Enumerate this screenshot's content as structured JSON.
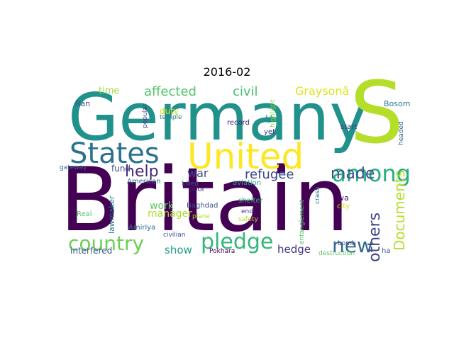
{
  "title": "2016-02",
  "words": [
    {
      "text": "Britain",
      "color": "#440154"
    },
    {
      "text": "Germany",
      "color": "#21918c"
    },
    {
      "text": "S",
      "color": "#b5de2b"
    },
    {
      "text": "United",
      "color": "#fde725"
    },
    {
      "text": "States",
      "color": "#2c728e"
    },
    {
      "text": "among",
      "color": "#28ae80"
    },
    {
      "text": "pledge",
      "color": "#35b779"
    },
    {
      "text": "country",
      "color": "#6ece58"
    },
    {
      "text": "new",
      "color": "#31688e"
    },
    {
      "text": "help",
      "color": "#482878"
    },
    {
      "text": "made",
      "color": "#3b528b"
    },
    {
      "text": "refugee",
      "color": "#3e4989"
    },
    {
      "text": "others",
      "color": "#404688"
    },
    {
      "text": "Documents",
      "color": "#b5de2b"
    },
    {
      "text": "affected",
      "color": "#52c569"
    },
    {
      "text": "civil",
      "color": "#4ac16d"
    },
    {
      "text": "Graysonâ",
      "color": "#dde318"
    },
    {
      "text": "war",
      "color": "#3f4788"
    },
    {
      "text": "work",
      "color": "#5ec962"
    },
    {
      "text": "manager",
      "color": "#addc30"
    },
    {
      "text": "show",
      "color": "#1f9e89"
    },
    {
      "text": "hedge",
      "color": "#453882"
    },
    {
      "text": "fund",
      "color": "#3e4a89"
    },
    {
      "text": "U",
      "color": "#24868e"
    },
    {
      "text": "time",
      "color": "#a0da39"
    },
    {
      "text": "duty",
      "color": "#cde11d"
    },
    {
      "text": "interfered",
      "color": "#3b528b"
    },
    {
      "text": "lawmaker",
      "color": "#2a788e"
    },
    {
      "text": "Ran",
      "color": "#3b528b"
    },
    {
      "text": "popular",
      "color": "#414487"
    },
    {
      "text": "temple",
      "color": "#287c8e"
    },
    {
      "text": "record",
      "color": "#482475"
    },
    {
      "text": "highlight",
      "color": "#7ad151"
    },
    {
      "text": "yet",
      "color": "#46327e"
    },
    {
      "text": "Bosom",
      "color": "#2a788e"
    },
    {
      "text": "start",
      "color": "#443983"
    },
    {
      "text": "headed",
      "color": "#33638d"
    },
    {
      "text": "gateway",
      "color": "#31688e"
    },
    {
      "text": "American",
      "color": "#33638d"
    },
    {
      "text": "killed",
      "color": "#355f8d"
    },
    {
      "text": "aviation",
      "color": "#1f9e89"
    },
    {
      "text": "poor",
      "color": "#482878"
    },
    {
      "text": "Real",
      "color": "#52c569"
    },
    {
      "text": "Baghdad",
      "color": "#3b528b"
    },
    {
      "text": "shelter",
      "color": "#2db27d"
    },
    {
      "text": "plane",
      "color": "#b5de2b"
    },
    {
      "text": "end",
      "color": "#46337f"
    },
    {
      "text": "Amiriya",
      "color": "#2e6e8e"
    },
    {
      "text": "safety",
      "color": "#c2df23"
    },
    {
      "text": "entanglement",
      "color": "#52c569"
    },
    {
      "text": "crash",
      "color": "#2c728e"
    },
    {
      "text": "bomb",
      "color": "#3e4a89"
    },
    {
      "text": "wa",
      "color": "#471365"
    },
    {
      "text": "city",
      "color": "#d8e219"
    },
    {
      "text": "civilian",
      "color": "#3b528b"
    },
    {
      "text": "Pokhara",
      "color": "#440154"
    },
    {
      "text": "destruction",
      "color": "#5ec962"
    },
    {
      "text": "ha",
      "color": "#355f8d"
    }
  ]
}
